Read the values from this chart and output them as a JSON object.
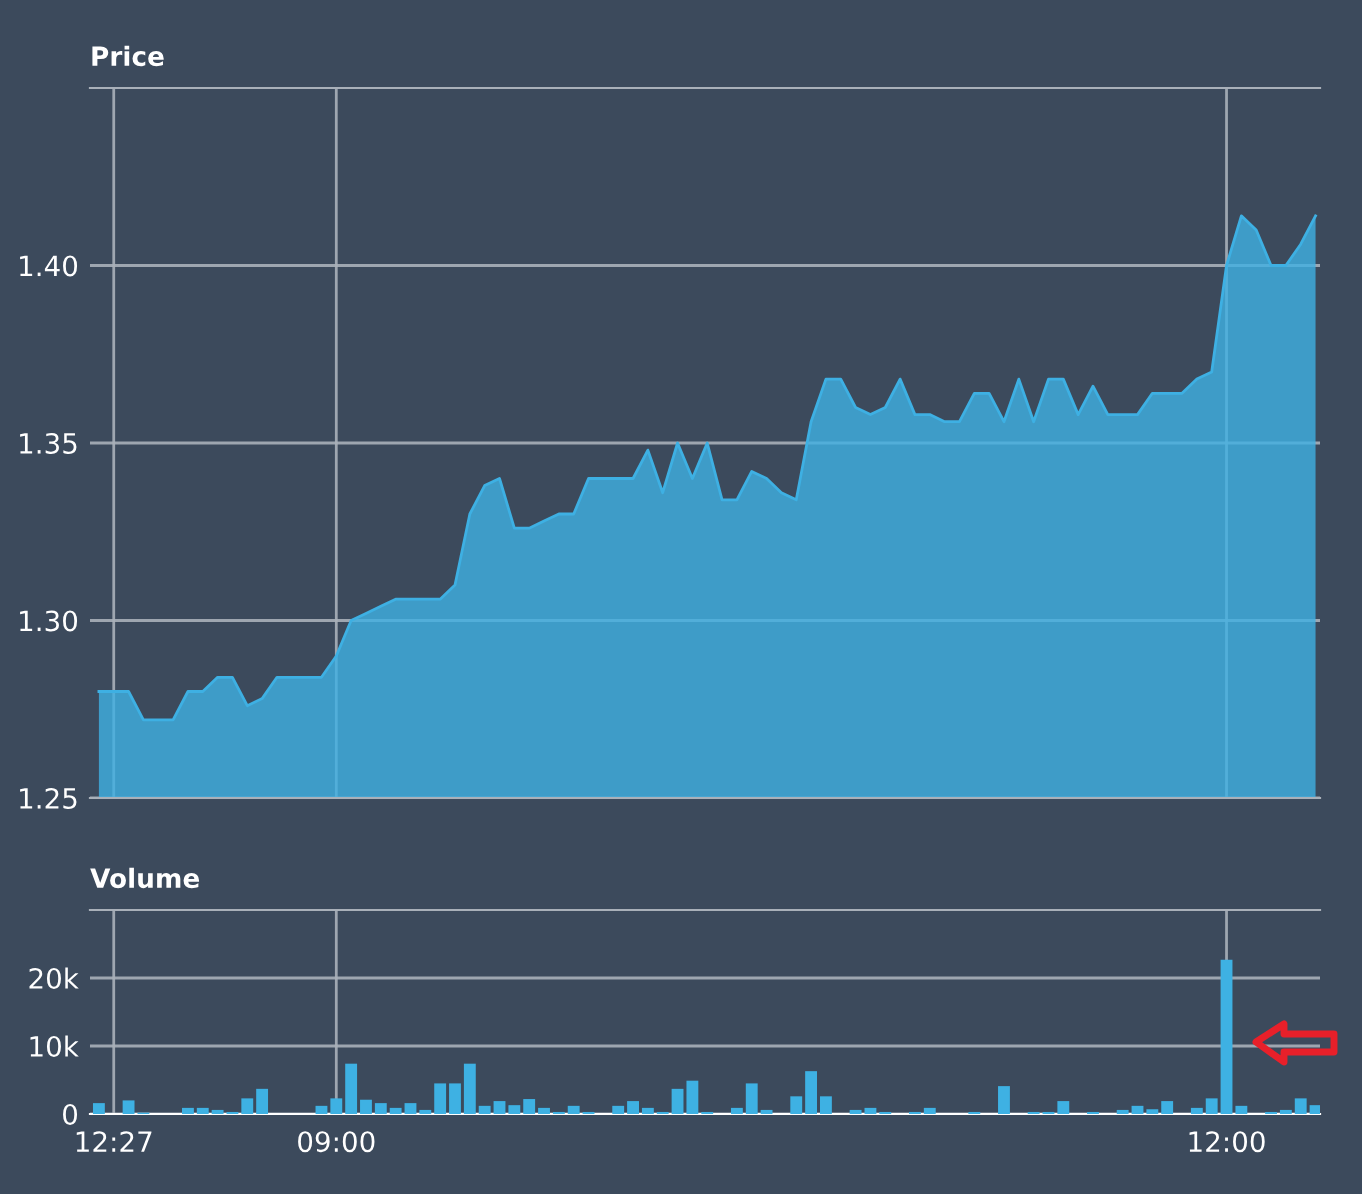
{
  "chart_data": [
    {
      "type": "area",
      "title": "Price",
      "color": "#3eb0e3",
      "categories": [
        null,
        null,
        null,
        null,
        null,
        null,
        null,
        null,
        null,
        null,
        null,
        null,
        null,
        null,
        null,
        null,
        null,
        null,
        null,
        null,
        null,
        null,
        null,
        null,
        null,
        null,
        null,
        null,
        null,
        null,
        null,
        null,
        null,
        null,
        null,
        null,
        null,
        null,
        null,
        null,
        null,
        null,
        null,
        null,
        null,
        null,
        null,
        null,
        null,
        null,
        null,
        null,
        null,
        null,
        null,
        null,
        null,
        null,
        null,
        null,
        null,
        null,
        null,
        null,
        null,
        null,
        null,
        null,
        null,
        null,
        null,
        null,
        null,
        null,
        null,
        null,
        null,
        null,
        null,
        null,
        null,
        null,
        null
      ],
      "values": [
        1.28,
        1.28,
        1.28,
        1.272,
        1.272,
        1.272,
        1.28,
        1.28,
        1.284,
        1.284,
        1.276,
        1.278,
        1.284,
        1.284,
        1.284,
        1.284,
        1.29,
        1.3,
        1.302,
        1.304,
        1.306,
        1.306,
        1.306,
        1.306,
        1.31,
        1.33,
        1.338,
        1.34,
        1.326,
        1.326,
        1.328,
        1.33,
        1.33,
        1.34,
        1.34,
        1.34,
        1.34,
        1.348,
        1.336,
        1.35,
        1.34,
        1.35,
        1.334,
        1.334,
        1.342,
        1.34,
        1.336,
        1.334,
        1.356,
        1.368,
        1.368,
        1.36,
        1.358,
        1.36,
        1.368,
        1.358,
        1.358,
        1.356,
        1.356,
        1.364,
        1.364,
        1.356,
        1.368,
        1.356,
        1.368,
        1.368,
        1.358,
        1.366,
        1.358,
        1.358,
        1.358,
        1.364,
        1.364,
        1.364,
        1.368,
        1.37,
        1.4,
        1.414,
        1.41,
        1.4,
        1.4,
        1.406,
        1.414
      ],
      "ylim": [
        1.25,
        1.45
      ],
      "yticks": [
        1.25,
        {
          "value": 1.3,
          "label": "1.30"
        },
        1.35,
        {
          "value": 1.4,
          "label": "1.40"
        }
      ],
      "grid": true,
      "tick_labels": "y"
    },
    {
      "type": "bar",
      "title": "Volume",
      "color": "#3eb1e3",
      "categories": [
        null,
        "12:27",
        null,
        null,
        null,
        null,
        null,
        null,
        null,
        null,
        null,
        null,
        null,
        null,
        null,
        null,
        "09:00",
        null,
        null,
        null,
        null,
        null,
        null,
        null,
        null,
        null,
        null,
        null,
        null,
        null,
        null,
        null,
        null,
        null,
        null,
        null,
        null,
        null,
        null,
        null,
        null,
        null,
        null,
        null,
        null,
        null,
        null,
        null,
        null,
        null,
        null,
        null,
        null,
        null,
        null,
        null,
        null,
        null,
        null,
        null,
        null,
        null,
        null,
        null,
        null,
        null,
        null,
        null,
        null,
        null,
        null,
        null,
        null,
        null,
        null,
        null,
        "12:00",
        null,
        null,
        null,
        null,
        null,
        null
      ],
      "values": [
        1600,
        0,
        2000,
        200,
        0,
        0,
        900,
        900,
        600,
        300,
        2300,
        3700,
        0,
        0,
        0,
        1200,
        2300,
        7400,
        2100,
        1600,
        900,
        1600,
        600,
        4500,
        4500,
        7400,
        1200,
        1900,
        1300,
        2200,
        900,
        300,
        1200,
        300,
        0,
        1200,
        1900,
        900,
        300,
        3700,
        4900,
        300,
        0,
        900,
        4500,
        600,
        0,
        2600,
        6300,
        2600,
        0,
        600,
        900,
        300,
        0,
        300,
        900,
        0,
        0,
        300,
        0,
        4100,
        0,
        300,
        300,
        1900,
        0,
        300,
        0,
        600,
        1200,
        700,
        1900,
        0,
        900,
        2300,
        22700,
        1200,
        0,
        300,
        600,
        2300,
        1300
      ],
      "ylim": [
        0,
        30000
      ],
      "yticks": [
        0,
        {
          "value": 10000,
          "label": "10k"
        },
        {
          "value": 20000,
          "label": "20k"
        }
      ],
      "grid": true
    }
  ]
}
